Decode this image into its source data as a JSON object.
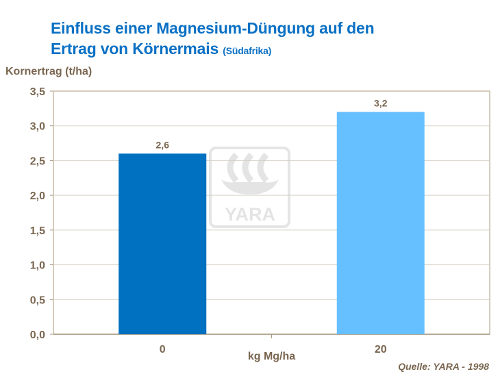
{
  "chart_data": {
    "type": "bar",
    "title_line1": "Einfluss einer Magnesium-Düngung auf den",
    "title_line2": "Ertrag von Körnermais",
    "subtitle": "(Südafrika)",
    "ylabel": "Kornertrag (t/ha)",
    "xlabel": "kg Mg/ha",
    "categories": [
      "0",
      "20"
    ],
    "values": [
      2.6,
      3.2
    ],
    "data_labels": [
      "2,6",
      "3,2"
    ],
    "bar_colors": [
      "#0070C0",
      "#66BFFF"
    ],
    "ylim": [
      0,
      3.5
    ],
    "yticks": [
      0,
      0.5,
      1.0,
      1.5,
      2.0,
      2.5,
      3.0,
      3.5
    ],
    "ytick_labels": [
      "0,0",
      "0,5",
      "1,0",
      "1,5",
      "2,0",
      "2,5",
      "3,0",
      "3,5"
    ],
    "grid": true,
    "source": "Quelle:  YARA - 1998",
    "watermark": "YARA"
  }
}
